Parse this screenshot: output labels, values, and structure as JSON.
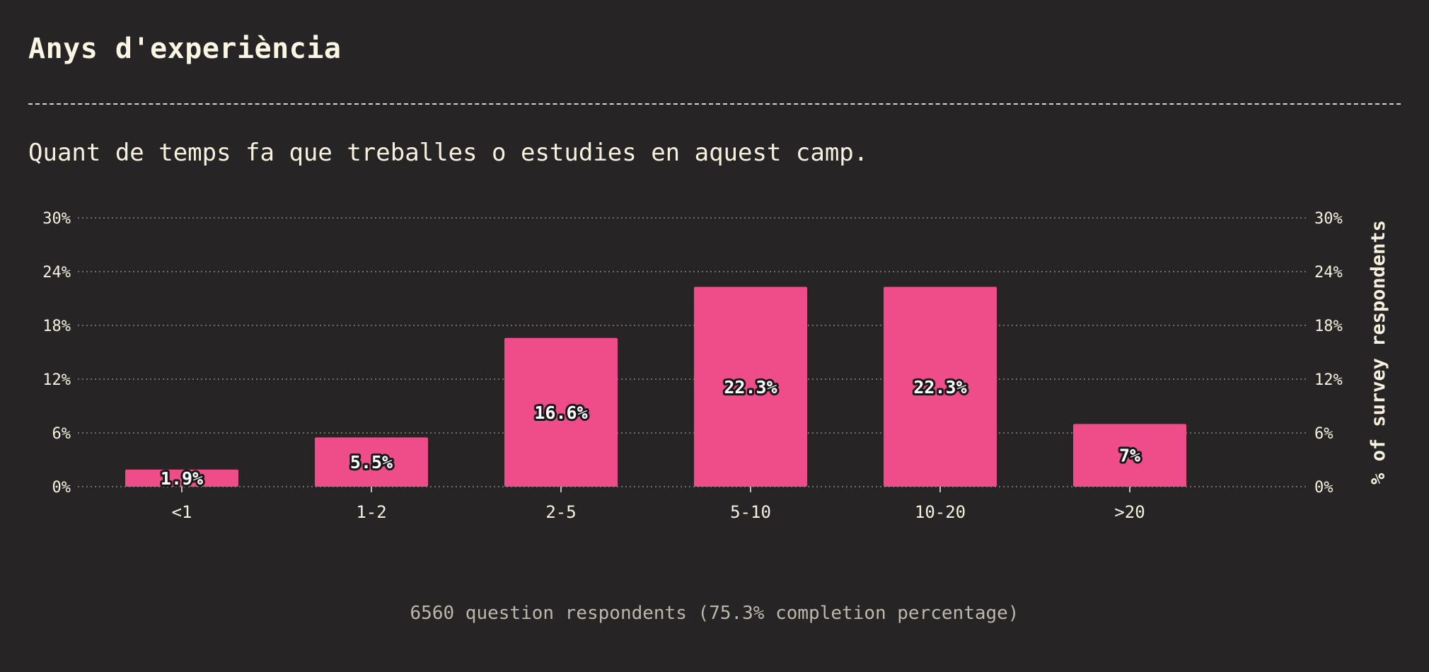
{
  "header": {
    "title": "Anys d'experiència",
    "question": "Quant de temps fa que treballes o estudies en aquest camp."
  },
  "footer": {
    "note": "6560 question respondents (75.3% completion percentage)"
  },
  "colors": {
    "background": "#272426",
    "bar": "#ef4c8a",
    "text": "#f6f1de",
    "grid": "#8a857c"
  },
  "chart_data": {
    "type": "bar",
    "categories": [
      "<1",
      "1-2",
      "2-5",
      "5-10",
      "10-20",
      ">20"
    ],
    "values": [
      1.9,
      5.5,
      16.6,
      22.3,
      22.3,
      7
    ],
    "value_labels": [
      "1.9%",
      "5.5%",
      "16.6%",
      "22.3%",
      "22.3%",
      "7%"
    ],
    "ylim": [
      0,
      30
    ],
    "yticks": [
      0,
      6,
      12,
      18,
      24,
      30
    ],
    "ytick_labels": [
      "0%",
      "6%",
      "12%",
      "18%",
      "24%",
      "30%"
    ],
    "ylabel": "% of survey respondents",
    "grid": true
  }
}
